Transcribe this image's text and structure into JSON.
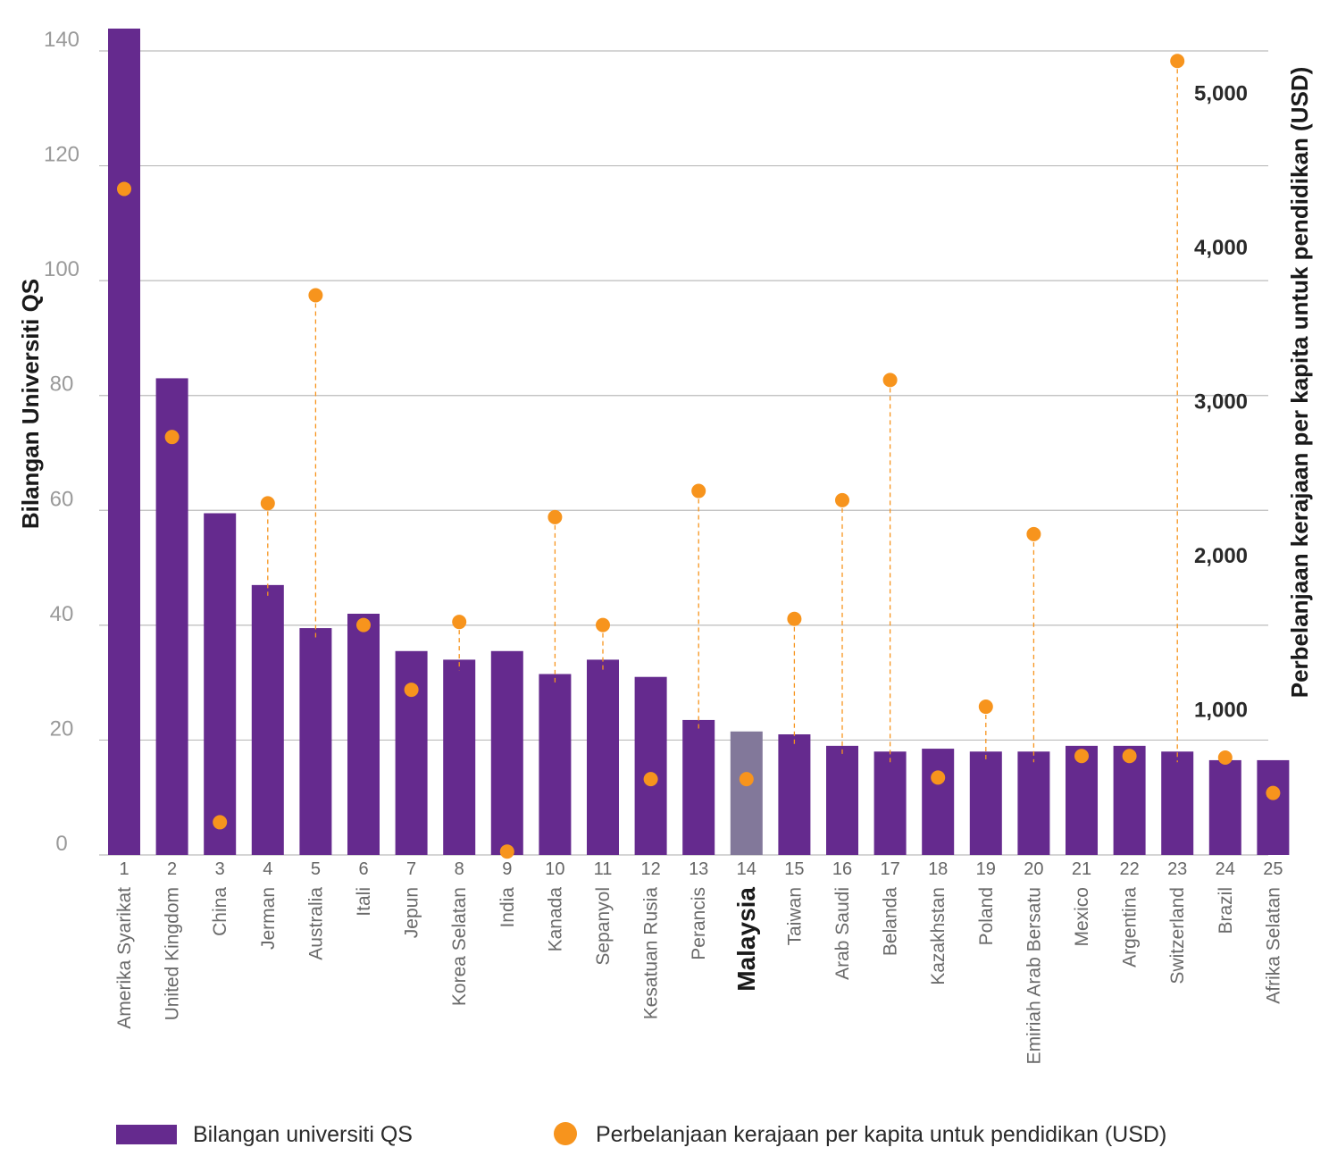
{
  "chart_data": {
    "type": "bar",
    "secondary_type": "scatter",
    "ylabel": "Bilangan Universiti QS",
    "y2label": "Perbelanjaan kerajaan per kapita untuk pendidikan (USD)",
    "ylim": [
      0,
      140
    ],
    "y2lim": [
      0,
      5000
    ],
    "yticks": [
      "0",
      "20",
      "40",
      "60",
      "80",
      "100",
      "120",
      "140"
    ],
    "y2ticks": [
      "1,000",
      "2,000",
      "3,000",
      "4,000",
      "5,000"
    ],
    "y2tick_values": [
      1000,
      2000,
      3000,
      4000,
      5000
    ],
    "grid": true,
    "highlight": "Malaysia",
    "ranks": [
      "1",
      "2",
      "3",
      "4",
      "5",
      "6",
      "7",
      "8",
      "9",
      "10",
      "11",
      "12",
      "13",
      "14",
      "15",
      "16",
      "17",
      "18",
      "19",
      "20",
      "21",
      "22",
      "23",
      "24",
      "25"
    ],
    "categories": [
      "Amerika Syarikat",
      "United Kingdom",
      "China",
      "Jerman",
      "Australia",
      "Itali",
      "Jepun",
      "Korea Selatan",
      "India",
      "Kanada",
      "Sepanyol",
      "Kesatuan Rusia",
      "Perancis",
      "Malaysia",
      "Taiwan",
      "Arab Saudi",
      "Belanda",
      "Kazakhstan",
      "Poland",
      "Emiriah Arab Bersatu",
      "Mexico",
      "Argentina",
      "Switzerland",
      "Brazil",
      "Afrika Selatan"
    ],
    "series": [
      {
        "name": "Bilangan universiti QS",
        "axis": "left",
        "color": "#652a8e",
        "highlight_color": "#82789a",
        "values": [
          145,
          83,
          59.5,
          47,
          39.5,
          42,
          35.5,
          34,
          35.5,
          31.5,
          34,
          31,
          23.5,
          21.5,
          21,
          19,
          18,
          18.5,
          18,
          18,
          19,
          19,
          18,
          16.5,
          16.5
        ]
      },
      {
        "name": "Perbelanjaan kerajaan per kapita untuk pendidikan (USD)",
        "axis": "right",
        "color": "#f7941d",
        "values": [
          4380,
          2770,
          270,
          2340,
          3690,
          1550,
          1130,
          1570,
          80,
          2250,
          1550,
          550,
          2420,
          550,
          1590,
          2360,
          3140,
          560,
          1020,
          2140,
          700,
          700,
          5210,
          690,
          460
        ]
      }
    ],
    "legend": [
      "Bilangan universiti QS",
      "Perbelanjaan kerajaan per kapita untuk pendidikan (USD)"
    ],
    "legend_position": "bottom"
  }
}
